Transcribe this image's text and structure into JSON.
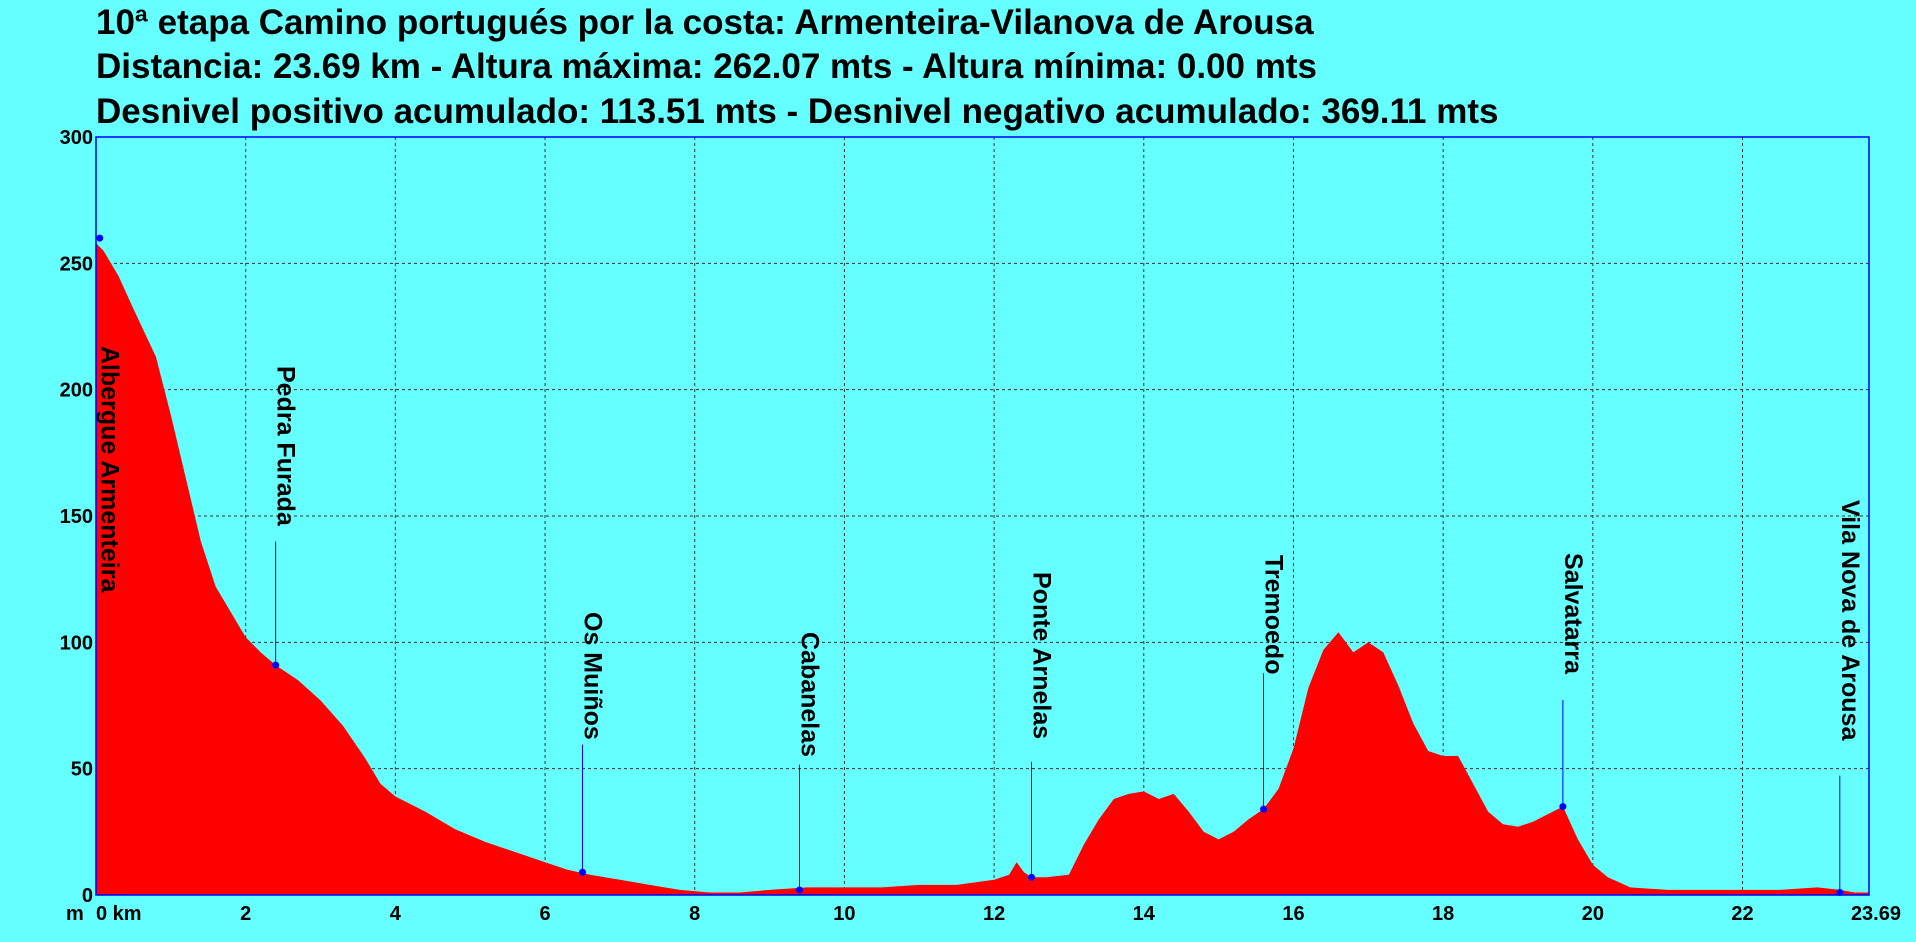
{
  "title_lines": [
    "10ª etapa Camino portugués por la costa: Armenteira-Vilanova de Arousa",
    "Distancia: 23.69 km - Altura máxima: 262.07 mts - Altura mínima: 0.00 mts",
    "Desnivel positivo acumulado: 113.51 mts - Desnivel negativo acumulado: 369.11 mts"
  ],
  "colors": {
    "background": "#66ffff",
    "area_fill": "#ff0000",
    "frame": "#0000ff",
    "markers": "#0000ff",
    "grid": "#333333",
    "text": "#000000"
  },
  "chart_data": {
    "type": "area",
    "ylabel": "m",
    "xlabel": "km",
    "xlim": [
      0,
      23.69
    ],
    "ylim": [
      0,
      300
    ],
    "x_ticks": [
      0,
      2,
      4,
      6,
      8,
      10,
      12,
      14,
      16,
      18,
      20,
      22
    ],
    "x_tick_labels": [
      "0 km",
      "2",
      "4",
      "6",
      "8",
      "10",
      "12",
      "14",
      "16",
      "18",
      "20",
      "22"
    ],
    "x_end_label": "23.69",
    "y_ticks": [
      0,
      50,
      100,
      150,
      200,
      250,
      300
    ],
    "y_tick_labels": [
      "0",
      "50",
      "100",
      "150",
      "200",
      "250",
      "300"
    ],
    "grid": true,
    "series": [
      {
        "x": [
          0,
          0.1,
          0.3,
          0.5,
          0.8,
          1.0,
          1.2,
          1.4,
          1.6,
          1.8,
          2.0,
          2.2,
          2.4,
          2.7,
          3.0,
          3.3,
          3.6,
          3.8,
          4.0,
          4.4,
          4.8,
          5.2,
          5.6,
          6.0,
          6.3,
          6.6,
          7.0,
          7.4,
          7.8,
          8.2,
          8.6,
          9.0,
          9.5,
          10.0,
          10.5,
          11.0,
          11.5,
          12.0,
          12.2,
          12.3,
          12.4,
          12.5,
          12.7,
          13.0,
          13.2,
          13.4,
          13.6,
          13.8,
          14.0,
          14.2,
          14.4,
          14.6,
          14.8,
          15.0,
          15.2,
          15.4,
          15.6,
          15.8,
          16.0,
          16.2,
          16.4,
          16.6,
          16.8,
          17.0,
          17.2,
          17.4,
          17.6,
          17.8,
          18.0,
          18.2,
          18.4,
          18.6,
          18.8,
          19.0,
          19.2,
          19.4,
          19.6,
          19.8,
          20.0,
          20.2,
          20.5,
          21.0,
          21.5,
          22.0,
          22.5,
          23.0,
          23.3,
          23.5,
          23.69
        ],
        "y": [
          258,
          255,
          245,
          232,
          213,
          190,
          165,
          140,
          122,
          112,
          102,
          96,
          91,
          85,
          77,
          67,
          54,
          44,
          39,
          33,
          26,
          21,
          17,
          13,
          10,
          8,
          6,
          4,
          2,
          1,
          1,
          2,
          3,
          3,
          3,
          4,
          4,
          6,
          8,
          13,
          9,
          7,
          7,
          8,
          20,
          30,
          38,
          40,
          41,
          38,
          40,
          33,
          25,
          22,
          25,
          30,
          34,
          42,
          58,
          82,
          97,
          104,
          96,
          100,
          96,
          83,
          68,
          57,
          55,
          55,
          44,
          33,
          28,
          27,
          29,
          32,
          35,
          22,
          12,
          7,
          3,
          2,
          2,
          2,
          2,
          3,
          2,
          1,
          1
        ]
      }
    ],
    "waypoints": [
      {
        "label": "Albergue Armenteira",
        "x": 0.05,
        "y": 260
      },
      {
        "label": "Pedra Furada",
        "x": 2.4,
        "y": 91
      },
      {
        "label": "Os Muiños",
        "x": 6.5,
        "y": 9
      },
      {
        "label": "Cabanelas",
        "x": 9.4,
        "y": 2
      },
      {
        "label": "Ponte Arnelas",
        "x": 12.5,
        "y": 7
      },
      {
        "label": "Tremoedo",
        "x": 15.6,
        "y": 34
      },
      {
        "label": "Salvatarra",
        "x": 19.6,
        "y": 35
      },
      {
        "label": "Vila Nova de Arousa",
        "x": 23.3,
        "y": 1
      }
    ]
  }
}
